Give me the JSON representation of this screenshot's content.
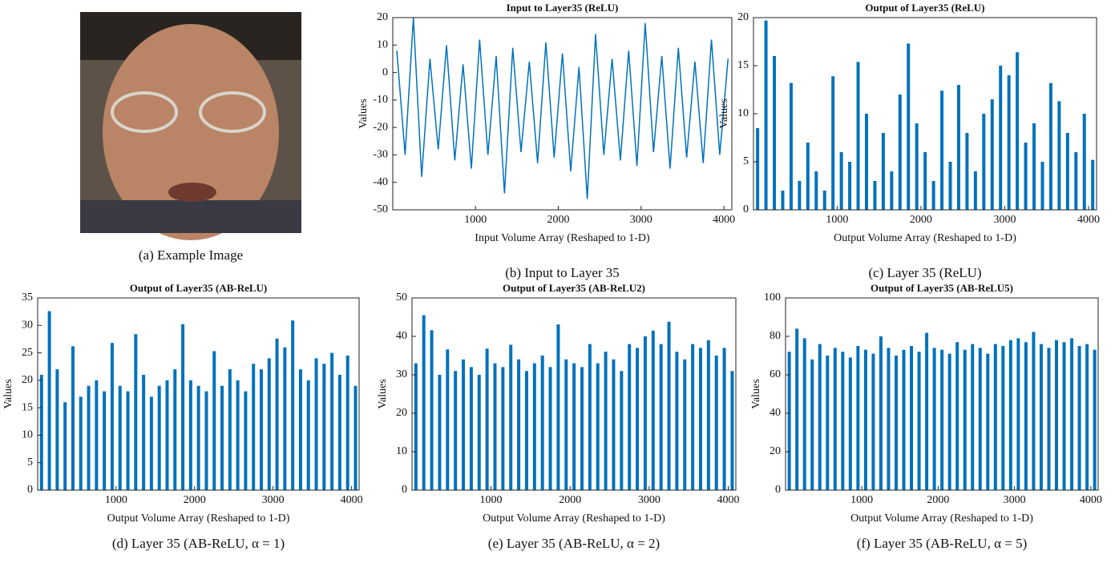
{
  "image_caption": "(a) Example Image",
  "chart_data": [
    {
      "type": "line",
      "title": "Input to Layer35 (ReLU)",
      "xlabel": "Input Volume Array (Reshaped to 1-D)",
      "ylabel": "Values",
      "caption": "(b) Input to Layer 35",
      "color": "#0072bd",
      "xlim": [
        1,
        4096
      ],
      "xticks": [
        1000,
        2000,
        3000,
        4000
      ],
      "ylim": [
        -50,
        20
      ],
      "yticks": [
        -50,
        -40,
        -30,
        -20,
        -10,
        0,
        10,
        20
      ],
      "x": [
        50,
        150,
        250,
        350,
        450,
        550,
        650,
        750,
        850,
        950,
        1050,
        1150,
        1250,
        1350,
        1450,
        1550,
        1650,
        1750,
        1850,
        1950,
        2050,
        2150,
        2250,
        2350,
        2450,
        2550,
        2650,
        2750,
        2850,
        2950,
        3050,
        3150,
        3250,
        3350,
        3450,
        3550,
        3650,
        3750,
        3850,
        3950,
        4050
      ],
      "values": [
        8,
        -30,
        20,
        -38,
        5,
        -28,
        10,
        -32,
        3,
        -35,
        12,
        -30,
        6,
        -44,
        9,
        -29,
        4,
        -33,
        11,
        -31,
        7,
        -36,
        2,
        -46,
        14,
        -30,
        5,
        -32,
        8,
        -34,
        18,
        -29,
        6,
        -35,
        9,
        -31,
        4,
        -33,
        12,
        -30,
        5
      ]
    },
    {
      "type": "bar",
      "title": "Output of Layer35 (ReLU)",
      "xlabel": "Output Volume Array (Reshaped to 1-D)",
      "ylabel": "Values",
      "caption": "(c) Layer 35 (ReLU)",
      "color": "#0072bd",
      "xlim": [
        1,
        4096
      ],
      "xticks": [
        1000,
        2000,
        3000,
        4000
      ],
      "ylim": [
        0,
        20
      ],
      "yticks": [
        0,
        5,
        10,
        15,
        20
      ],
      "x": [
        50,
        150,
        250,
        350,
        450,
        550,
        650,
        750,
        850,
        950,
        1050,
        1150,
        1250,
        1350,
        1450,
        1550,
        1650,
        1750,
        1850,
        1950,
        2050,
        2150,
        2250,
        2350,
        2450,
        2550,
        2650,
        2750,
        2850,
        2950,
        3050,
        3150,
        3250,
        3350,
        3450,
        3550,
        3650,
        3750,
        3850,
        3950,
        4050
      ],
      "values": [
        8.5,
        19.7,
        16,
        2,
        13.2,
        3,
        7,
        4,
        2,
        13.9,
        6,
        5,
        15.4,
        10,
        3,
        8,
        4,
        12,
        17.3,
        9,
        6,
        3,
        12.4,
        5,
        13,
        8,
        4,
        10,
        11.5,
        15,
        14,
        16.4,
        7,
        9,
        5,
        13.2,
        11.3,
        8,
        6,
        10,
        5.2
      ]
    },
    {
      "type": "bar",
      "title": "Output of Layer35 (AB-ReLU)",
      "xlabel": "Output Volume Array (Reshaped to 1-D)",
      "ylabel": "Values",
      "caption": "(d) Layer 35 (AB-ReLU, α = 1)",
      "color": "#0072bd",
      "xlim": [
        1,
        4096
      ],
      "xticks": [
        1000,
        2000,
        3000,
        4000
      ],
      "ylim": [
        0,
        35
      ],
      "yticks": [
        0,
        5,
        10,
        15,
        20,
        25,
        30,
        35
      ],
      "x": [
        50,
        150,
        250,
        350,
        450,
        550,
        650,
        750,
        850,
        950,
        1050,
        1150,
        1250,
        1350,
        1450,
        1550,
        1650,
        1750,
        1850,
        1950,
        2050,
        2150,
        2250,
        2350,
        2450,
        2550,
        2650,
        2750,
        2850,
        2950,
        3050,
        3150,
        3250,
        3350,
        3450,
        3550,
        3650,
        3750,
        3850,
        3950,
        4050
      ],
      "values": [
        21,
        32.6,
        22,
        16,
        26.2,
        17,
        19,
        20,
        18,
        26.8,
        19,
        18,
        28.4,
        21,
        17,
        19,
        20,
        22,
        30.2,
        20,
        19,
        18,
        25.3,
        19,
        22,
        20,
        18,
        23,
        22,
        24,
        27.6,
        26,
        30.9,
        22,
        20,
        24,
        23,
        25,
        21,
        24.5,
        19
      ]
    },
    {
      "type": "bar",
      "title": "Output of Layer35 (AB-ReLU2)",
      "xlabel": "Output Volume Array (Reshaped to 1-D)",
      "ylabel": "Values",
      "caption": "(e) Layer 35 (AB-ReLU, α = 2)",
      "color": "#0072bd",
      "xlim": [
        1,
        4096
      ],
      "xticks": [
        1000,
        2000,
        3000,
        4000
      ],
      "ylim": [
        0,
        50
      ],
      "yticks": [
        0,
        10,
        20,
        30,
        40,
        50
      ],
      "x": [
        50,
        150,
        250,
        350,
        450,
        550,
        650,
        750,
        850,
        950,
        1050,
        1150,
        1250,
        1350,
        1450,
        1550,
        1650,
        1750,
        1850,
        1950,
        2050,
        2150,
        2250,
        2350,
        2450,
        2550,
        2650,
        2750,
        2850,
        2950,
        3050,
        3150,
        3250,
        3350,
        3450,
        3550,
        3650,
        3750,
        3850,
        3950,
        4050
      ],
      "values": [
        33,
        45.5,
        41.6,
        30,
        36.6,
        31,
        34,
        32,
        30,
        36.8,
        33,
        32,
        37.8,
        34,
        31,
        33,
        35,
        32,
        43.1,
        34,
        33,
        32,
        38,
        33,
        36,
        34,
        31,
        38,
        37,
        40,
        41.5,
        38,
        43.8,
        36,
        34,
        38,
        37,
        39,
        35,
        37,
        31
      ]
    },
    {
      "type": "bar",
      "title": "Output of Layer35 (AB-ReLU5)",
      "xlabel": "Output Volume Array (Reshaped to 1-D)",
      "ylabel": "Values",
      "caption": "(f) Layer 35 (AB-ReLU, α = 5)",
      "color": "#0072bd",
      "xlim": [
        1,
        4096
      ],
      "xticks": [
        1000,
        2000,
        3000,
        4000
      ],
      "ylim": [
        0,
        100
      ],
      "yticks": [
        0,
        20,
        40,
        60,
        80,
        100
      ],
      "x": [
        50,
        150,
        250,
        350,
        450,
        550,
        650,
        750,
        850,
        950,
        1050,
        1150,
        1250,
        1350,
        1450,
        1550,
        1650,
        1750,
        1850,
        1950,
        2050,
        2150,
        2250,
        2350,
        2450,
        2550,
        2650,
        2750,
        2850,
        2950,
        3050,
        3150,
        3250,
        3350,
        3450,
        3550,
        3650,
        3750,
        3850,
        3950,
        4050
      ],
      "values": [
        72,
        84,
        79,
        68,
        76,
        70,
        74,
        72,
        69,
        75,
        73,
        71,
        80,
        74,
        70,
        73,
        75,
        72,
        81.8,
        74,
        73,
        71,
        77,
        73,
        76,
        74,
        71,
        76,
        75,
        78,
        79,
        77,
        82.3,
        76,
        74,
        78,
        77,
        79,
        75,
        76,
        73
      ]
    }
  ]
}
